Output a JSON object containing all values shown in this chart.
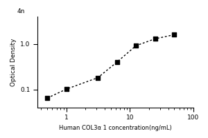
{
  "x_data": [
    0.5,
    1.0,
    3.125,
    6.25,
    12.5,
    25.0,
    50.0
  ],
  "y_data": [
    0.065,
    0.102,
    0.182,
    0.4,
    0.92,
    1.3,
    1.6
  ],
  "xlabel": "Human COL3α 1 concentration(ng/mL)",
  "ylabel": "Optical Density",
  "xlim": [
    0.35,
    100
  ],
  "ylim": [
    0.04,
    4
  ],
  "marker": "s",
  "marker_color": "black",
  "line_style": "dotted",
  "line_color": "black",
  "marker_size": 4,
  "background_color": "#ffffff",
  "top_label": "4n",
  "x_ticks": [
    1,
    10,
    100
  ],
  "y_ticks": [
    0.1,
    1
  ],
  "xlabel_fontsize": 6,
  "ylabel_fontsize": 6.5,
  "tick_labelsize": 6.5
}
